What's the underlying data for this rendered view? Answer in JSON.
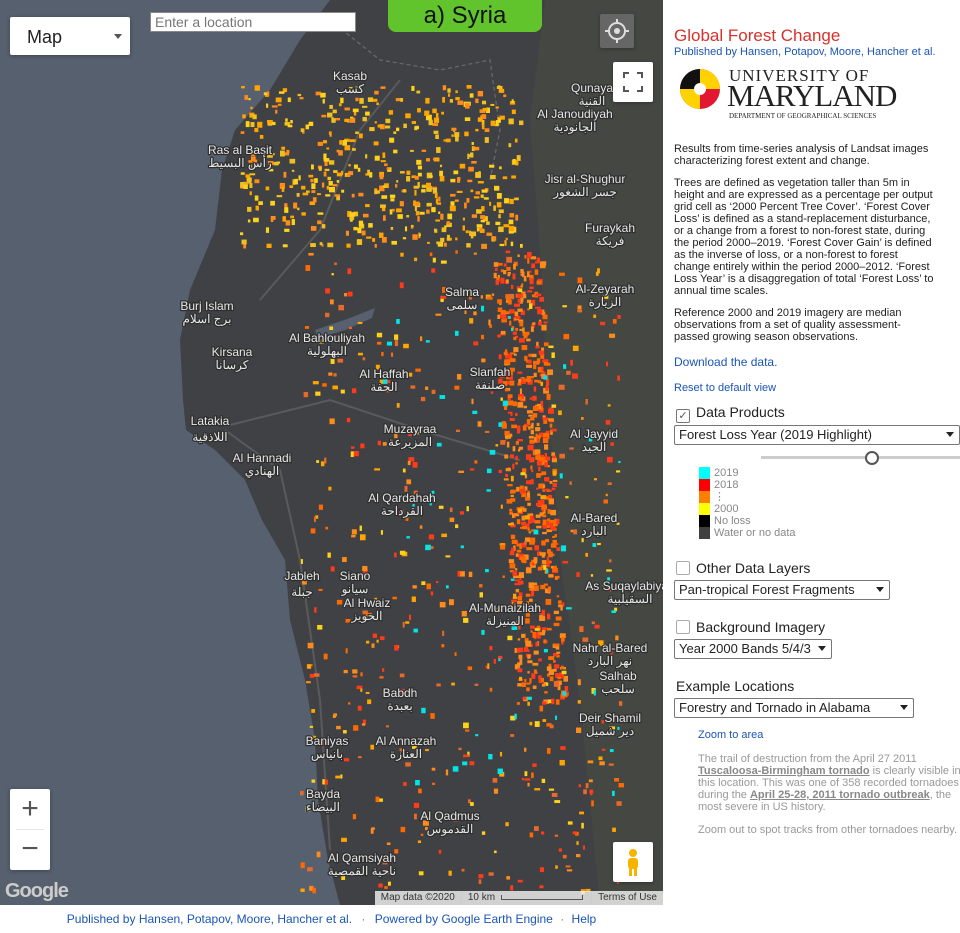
{
  "map": {
    "type_control": "Map",
    "search_placeholder": "Enter a location",
    "badge": "a) Syria",
    "zoom_in": "+",
    "zoom_out": "−",
    "google": "Google",
    "attribution": "Map data ©2020",
    "scale": "10 km",
    "terms": "Terms of Use",
    "places": [
      {
        "name": "Kasab",
        "arabic": "كسب"
      },
      {
        "name": "Ras al Basit",
        "arabic": "رأس البسيط"
      },
      {
        "name": "Qunaya",
        "arabic": "القنية"
      },
      {
        "name": "Al Janoudiyah",
        "arabic": "الجانودية"
      },
      {
        "name": "Jisr al-Shughur",
        "arabic": "جسر الشغور"
      },
      {
        "name": "Furaykah",
        "arabic": "فريكة"
      },
      {
        "name": "Al-Zeyarah",
        "arabic": "الزيارة"
      },
      {
        "name": "Burj Islam",
        "arabic": "برج اسلام"
      },
      {
        "name": "Kirsana",
        "arabic": "كرسانا"
      },
      {
        "name": "Al Bahlouliyah",
        "arabic": "البهلولية"
      },
      {
        "name": "Salma",
        "arabic": "سلمى"
      },
      {
        "name": "Slanfah",
        "arabic": "صلنفة"
      },
      {
        "name": "Al Haffah",
        "arabic": "الحفة"
      },
      {
        "name": "Latakia",
        "arabic": "اللاذقية"
      },
      {
        "name": "Muzayraa",
        "arabic": "المزيرعة"
      },
      {
        "name": "Al Jayyid",
        "arabic": "الجيد"
      },
      {
        "name": "Al Hannadi",
        "arabic": "الهنادي"
      },
      {
        "name": "Al Qardahah",
        "arabic": "القرداحة"
      },
      {
        "name": "Al-Bared",
        "arabic": "البارد"
      },
      {
        "name": "Jableh",
        "arabic": "جبلة"
      },
      {
        "name": "Siano",
        "arabic": "سيانو"
      },
      {
        "name": "Al Hwaiz",
        "arabic": "الحويز"
      },
      {
        "name": "As Suqaylabiyah",
        "arabic": "السقيلبية"
      },
      {
        "name": "Al-Munaizilah",
        "arabic": "المنيزلة"
      },
      {
        "name": "Nahr al-Bared",
        "arabic": "نهر البارد"
      },
      {
        "name": "Salhab",
        "arabic": "سلحب"
      },
      {
        "name": "Babdh",
        "arabic": "بعبدة"
      },
      {
        "name": "Deir Shamil",
        "arabic": "دير شميل"
      },
      {
        "name": "Baniyas",
        "arabic": "بانياس"
      },
      {
        "name": "Al Annazah",
        "arabic": "العنازة"
      },
      {
        "name": "Bayda",
        "arabic": "البيضاء"
      },
      {
        "name": "Al Qadmus",
        "arabic": "القدموس"
      },
      {
        "name": "Al Qamsiyah",
        "arabic": "ناحية القمصية"
      }
    ]
  },
  "panel": {
    "title": "Global Forest Change",
    "authors": "Published by Hansen, Potapov, Moore, Hancher et al.",
    "logo": {
      "line1": "UNIVERSITY OF",
      "line2": "MARYLAND",
      "line3": "DEPARTMENT OF GEOGRAPHICAL SCIENCES"
    },
    "paragraphs": [
      "Results from time-series analysis of Landsat images characterizing forest extent and change.",
      "Trees are defined as vegetation taller than 5m in height and are expressed as a percentage per output grid cell as ‘2000 Percent Tree Cover’. ‘Forest Cover Loss’ is defined as a stand-replacement disturbance, or a change from a forest to non-forest state, during the period 2000–2019. ‘Forest Cover Gain’ is defined as the inverse of loss, or a non-forest to forest change entirely within the period 2000–2012. ‘Forest Loss Year’ is a disaggregation of total ‘Forest Loss’ to annual time scales.",
      "Reference 2000 and 2019 imagery are median observations from a set of quality assessment-passed growing season observations."
    ],
    "download": "Download the data.",
    "reset": "Reset to default view",
    "data_products": {
      "label": "Data Products",
      "select": "Forest Loss Year (2019 Highlight)"
    },
    "legend": [
      {
        "label": "2019",
        "color": "#00ffff"
      },
      {
        "label": "2018",
        "color": "#ff0000"
      },
      {
        "label": "⋮",
        "color": "#ff8000"
      },
      {
        "label": "2000",
        "color": "#ffff00"
      },
      {
        "label": "No loss",
        "color": "#000000"
      },
      {
        "label": "Water or no data",
        "color": "#404040"
      }
    ],
    "other_layers": {
      "label": "Other Data Layers",
      "select": "Pan-tropical Forest Fragments"
    },
    "background": {
      "label": "Background Imagery",
      "select": "Year 2000 Bands 5/4/3"
    },
    "examples": {
      "label": "Example Locations",
      "select": "Forestry and Tornado in Alabama",
      "zoom": "Zoom to area",
      "text": [
        "The trail of destruction from the April 27 2011 ",
        "Tuscaloosa-Birmingham tornado",
        " is clearly visible in this location. This was one of 358 recorded tornadoes during the ",
        "April 25-28, 2011 tornado outbreak",
        ", the most severe in US history."
      ],
      "note": "Zoom out to spot tracks from other tornadoes nearby."
    }
  },
  "footer": {
    "authors": "Published by Hansen, Potapov, Moore, Hancher et al.",
    "sep": "·",
    "engine": "Powered by Google Earth Engine",
    "help": "Help"
  }
}
